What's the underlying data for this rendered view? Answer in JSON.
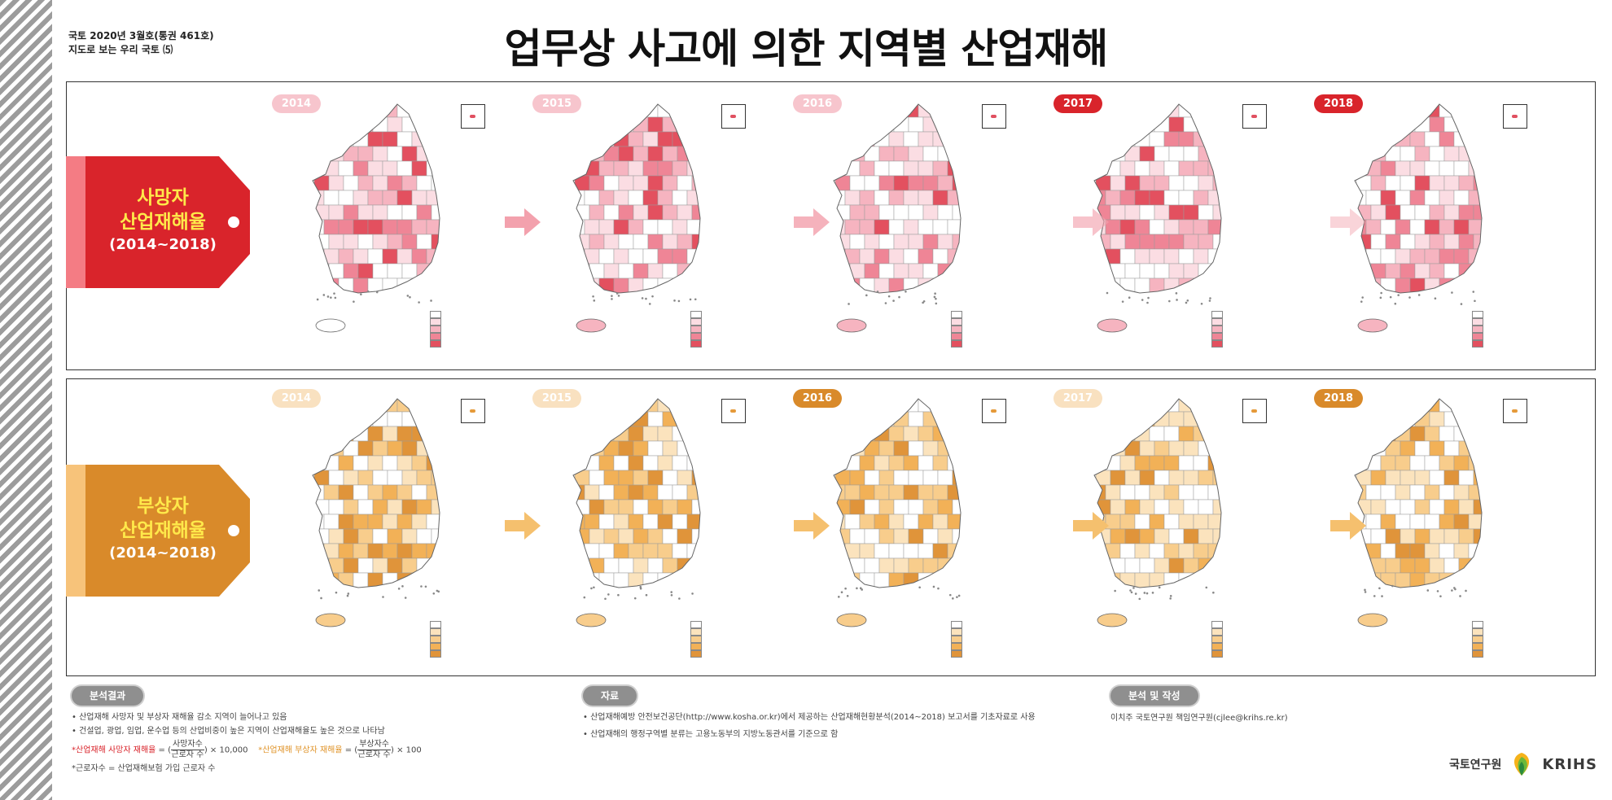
{
  "header": {
    "issue": "국토 2020년 3월호(통권 461호)",
    "series": "지도로 보는 우리 국토 ⑸",
    "title": "업무상 사고에 의한 지역별 산업재해"
  },
  "colors": {
    "death_accent": "#d9242b",
    "injury_accent": "#d98a2a",
    "badge_text_yellow": "#ffe94a"
  },
  "death_panel": {
    "label_line1": "사망자",
    "label_line2": "산업재해율",
    "label_line3": "(2014~2018)",
    "years": [
      "2014",
      "2015",
      "2016",
      "2017",
      "2018"
    ],
    "highlighted_years": [
      "2017",
      "2018"
    ],
    "map_palette": [
      "#ffffff",
      "#fbdde3",
      "#f6b4c0",
      "#ef8596",
      "#e3505f"
    ]
  },
  "injury_panel": {
    "label_line1": "부상자",
    "label_line2": "산업재해율",
    "label_line3": "(2014~2018)",
    "years": [
      "2014",
      "2015",
      "2016",
      "2017",
      "2018"
    ],
    "highlighted_years": [
      "2016",
      "2018"
    ],
    "map_palette": [
      "#ffffff",
      "#fbe3bd",
      "#f8cd8c",
      "#f2b157",
      "#e0943a"
    ]
  },
  "icons": {
    "inset_box": "inset-map-icon",
    "arrow": "right-arrow-icon",
    "logo": "krihs-leaf-logo-icon"
  },
  "footer": {
    "analysis": {
      "label": "분석결과",
      "bullet1": "• 산업재해 사망자 및 부상자 재해율 감소 지역이 늘어나고 있음",
      "bullet2": "• 건설업, 광업, 임업, 운수업 등의 산업비중이 높은 지역이 산업재해율도 높은 것으로 나타남",
      "f1_label": "*산업재해 사망자 재해율",
      "f1_num": "사망자수",
      "f1_den": "근로자 수",
      "f1_mult": "× 10,000",
      "f2_label": "*산업재해 부상자 재해율",
      "f2_num": "부상자수",
      "f2_den": "근로자 수",
      "f2_mult": "× 100",
      "note": "*근로자수 = 산업재해보험 가입 근로자 수"
    },
    "source": {
      "label": "자료",
      "bullet1": "• 산업재해예방 안전보건공단(http://www.kosha.or.kr)에서 제공하는 산업재해현황분석(2014~2018) 보고서를 기초자료로 사용",
      "bullet2": "• 산업재해의 행정구역별 분류는 고용노동부의 지방노동관서를 기준으로 함"
    },
    "author": {
      "label": "분석 및 작성",
      "name": "이치주 국토연구원 책임연구원(cjlee@krihs.re.kr)"
    },
    "logo_korean": "국토연구원",
    "logo_english": "KRIHS"
  }
}
